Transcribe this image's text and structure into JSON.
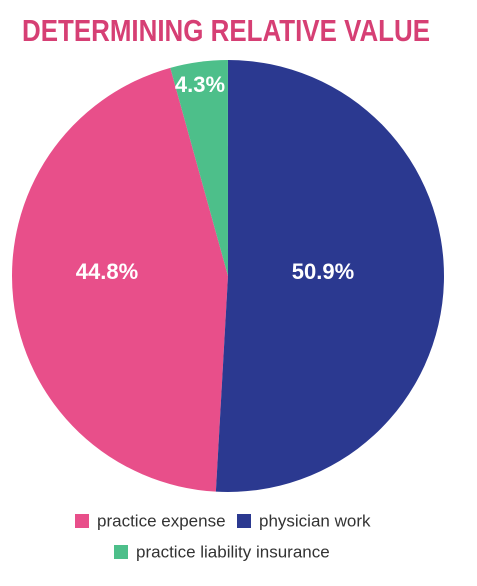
{
  "chart_data": {
    "type": "pie",
    "title": "DETERMINING RELATIVE VALUE",
    "categories": [
      "practice expense",
      "physician work",
      "practice liability insurance"
    ],
    "values": [
      44.8,
      50.9,
      4.3
    ],
    "value_labels": [
      "44.8%",
      "50.9%",
      "4.3%"
    ],
    "colors": [
      "#e84f8a",
      "#2b3990",
      "#4dbf8a"
    ]
  }
}
